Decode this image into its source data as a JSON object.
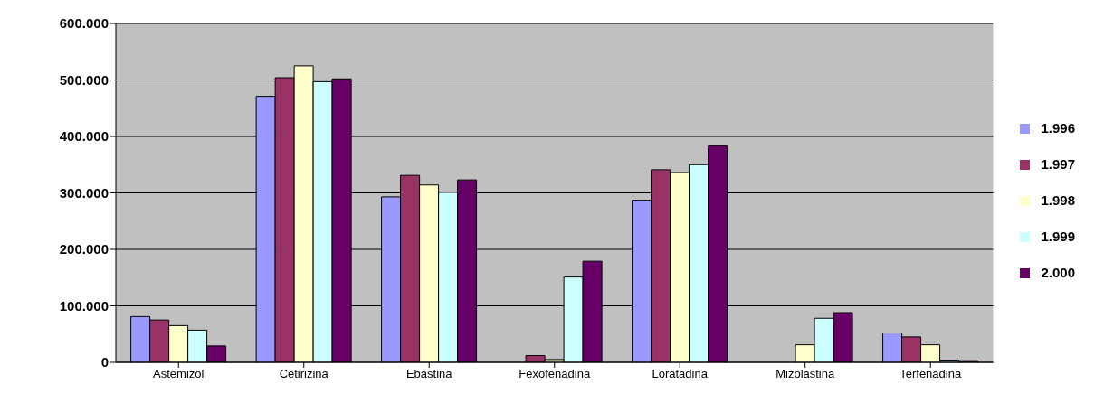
{
  "chart_data": {
    "type": "bar",
    "categories": [
      "Astemizol",
      "Cetirizina",
      "Ebastina",
      "Fexofenadina",
      "Loratadina",
      "Mizolastina",
      "Terfenadina"
    ],
    "series": [
      {
        "name": "1.996",
        "color": "#9999ff",
        "values": [
          81000,
          471000,
          293000,
          0,
          287000,
          0,
          52000
        ]
      },
      {
        "name": "1.997",
        "color": "#993366",
        "values": [
          75000,
          504000,
          331000,
          12000,
          341000,
          0,
          45000
        ]
      },
      {
        "name": "1.998",
        "color": "#ffffcc",
        "values": [
          65000,
          525000,
          314000,
          5000,
          336000,
          31000,
          31000
        ]
      },
      {
        "name": "1.999",
        "color": "#ccffff",
        "values": [
          57000,
          497000,
          301000,
          151000,
          350000,
          78000,
          4000
        ]
      },
      {
        "name": "2.000",
        "color": "#660066",
        "values": [
          29000,
          502000,
          323000,
          179000,
          383000,
          88000,
          3000
        ]
      }
    ],
    "ylim": [
      0,
      600000
    ],
    "yticks": [
      {
        "value": 0,
        "label": "0"
      },
      {
        "value": 100000,
        "label": "100.000"
      },
      {
        "value": 200000,
        "label": "200.000"
      },
      {
        "value": 300000,
        "label": "300.000"
      },
      {
        "value": 400000,
        "label": "400.000"
      },
      {
        "value": 500000,
        "label": "500.000"
      },
      {
        "value": 600000,
        "label": "600.000"
      }
    ],
    "grid": "y",
    "legend": "right"
  }
}
